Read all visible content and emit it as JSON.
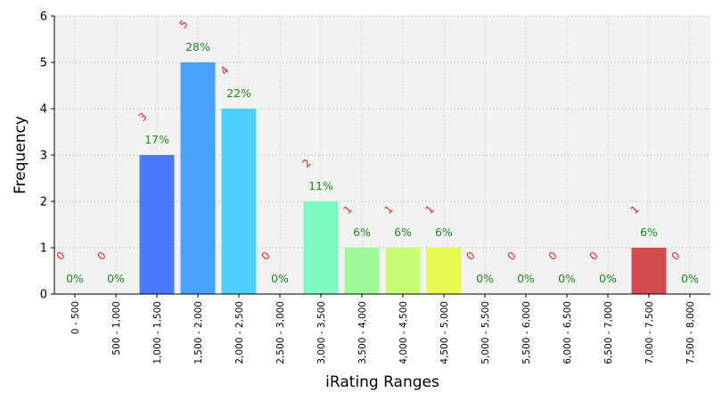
{
  "chart_data": {
    "type": "bar",
    "title": "",
    "xlabel": "iRating Ranges",
    "ylabel": "Frequency",
    "ylim": [
      0,
      6
    ],
    "yticks": [
      "0",
      "1",
      "2",
      "3",
      "4",
      "5",
      "6"
    ],
    "grid": true,
    "categories": [
      "0 - 500",
      "500 - 1,000",
      "1,000 - 1,500",
      "1,500 - 2,000",
      "2,000 - 2,500",
      "2,500 - 3,000",
      "3,000 - 3,500",
      "3,500 - 4,000",
      "4,000 - 4,500",
      "4,500 - 5,000",
      "5,000 - 5,500",
      "5,500 - 6,000",
      "6,000 - 6,500",
      "6,500 - 7,000",
      "7,000 - 7,500",
      "7,500 - 8,000"
    ],
    "values": [
      0,
      0,
      3,
      5,
      4,
      0,
      2,
      1,
      1,
      1,
      0,
      0,
      0,
      0,
      1,
      0
    ],
    "count_labels": [
      "0",
      "0",
      "3",
      "5",
      "4",
      "0",
      "2",
      "1",
      "1",
      "1",
      "0",
      "0",
      "0",
      "0",
      "1",
      "0"
    ],
    "percent_labels": [
      "0%",
      "0%",
      "17%",
      "28%",
      "22%",
      "0%",
      "11%",
      "6%",
      "6%",
      "6%",
      "0%",
      "0%",
      "0%",
      "0%",
      "6%",
      "0%"
    ],
    "colors": [
      "#4a78fa",
      "#4a78fa",
      "#4a78fa",
      "#48a2fa",
      "#4acffd",
      "#4acffd",
      "#7dfac2",
      "#a0fa9a",
      "#c6fb74",
      "#e8fa52",
      "#e8fa52",
      "#e8fa52",
      "#e8fa52",
      "#e8fa52",
      "#d34a4a",
      "#d34a4a"
    ],
    "count_label_color": "#ff2020",
    "percent_label_color": "#1a8a1a",
    "plot_background": "#f2f2f2"
  }
}
